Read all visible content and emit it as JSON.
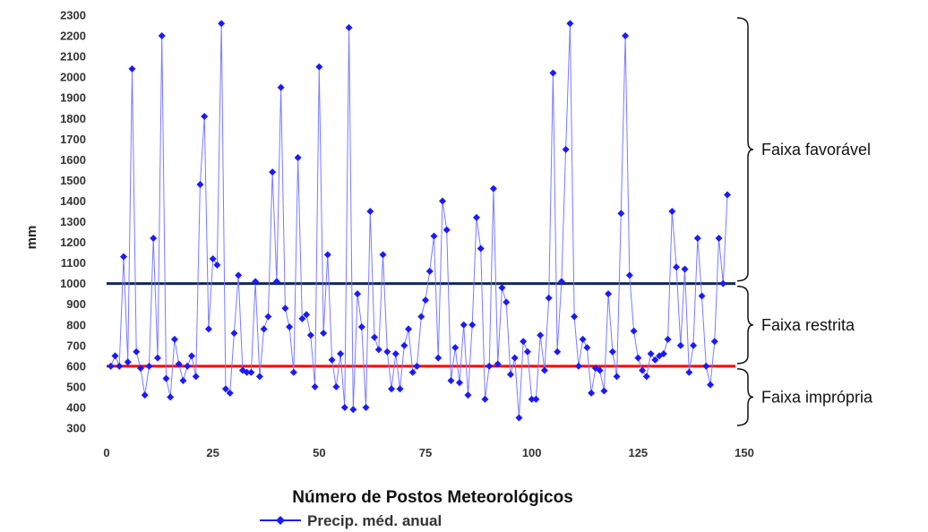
{
  "chart_data": {
    "type": "line",
    "title": "",
    "xlabel": "Número de Postos Meteorológicos",
    "ylabel": "mm",
    "xlim": [
      0,
      150
    ],
    "ylim": [
      300,
      2300
    ],
    "x_ticks": [
      0,
      25,
      50,
      75,
      100,
      125,
      150
    ],
    "y_ticks": [
      300,
      400,
      500,
      600,
      700,
      800,
      900,
      1000,
      1100,
      1200,
      1300,
      1400,
      1500,
      1600,
      1700,
      1800,
      1900,
      2000,
      2100,
      2200,
      2300
    ],
    "grid": false,
    "legend_position": "bottom",
    "series": [
      {
        "name": "Precip. méd. anual",
        "color": "#1a1aff",
        "marker": "diamond",
        "x": [
          1,
          2,
          3,
          4,
          5,
          6,
          7,
          8,
          9,
          10,
          11,
          12,
          13,
          14,
          15,
          16,
          17,
          18,
          19,
          20,
          21,
          22,
          23,
          24,
          25,
          26,
          27,
          28,
          29,
          30,
          31,
          32,
          33,
          34,
          35,
          36,
          37,
          38,
          39,
          40,
          41,
          42,
          43,
          44,
          45,
          46,
          47,
          48,
          49,
          50,
          51,
          52,
          53,
          54,
          55,
          56,
          57,
          58,
          59,
          60,
          61,
          62,
          63,
          64,
          65,
          66,
          67,
          68,
          69,
          70,
          71,
          72,
          73,
          74,
          75,
          76,
          77,
          78,
          79,
          80,
          81,
          82,
          83,
          84,
          85,
          86,
          87,
          88,
          89,
          90,
          91,
          92,
          93,
          94,
          95,
          96,
          97,
          98,
          99,
          100,
          101,
          102,
          103,
          104,
          105,
          106,
          107,
          108,
          109,
          110,
          111,
          112,
          113,
          114,
          115,
          116,
          117,
          118,
          119,
          120,
          121,
          122,
          123,
          124,
          125,
          126,
          127,
          128,
          129,
          130,
          131,
          132,
          133,
          134,
          135,
          136,
          137,
          138,
          139,
          140,
          141,
          142,
          143,
          144,
          145,
          146
        ],
        "y": [
          600,
          650,
          600,
          1130,
          620,
          2040,
          670,
          590,
          460,
          600,
          1220,
          640,
          2200,
          540,
          450,
          730,
          610,
          530,
          600,
          650,
          550,
          1480,
          1810,
          780,
          1120,
          1090,
          2260,
          490,
          470,
          760,
          1040,
          580,
          570,
          570,
          1010,
          550,
          780,
          840,
          1540,
          1010,
          1950,
          880,
          790,
          570,
          1610,
          830,
          850,
          750,
          500,
          2050,
          760,
          1140,
          630,
          500,
          660,
          400,
          2240,
          390,
          950,
          790,
          400,
          1350,
          740,
          680,
          1140,
          670,
          490,
          660,
          490,
          700,
          780,
          570,
          600,
          840,
          920,
          1060,
          1230,
          640,
          1400,
          1260,
          530,
          690,
          520,
          800,
          460,
          800,
          1320,
          1170,
          440,
          600,
          1460,
          610,
          980,
          910,
          560,
          640,
          350,
          720,
          670,
          440,
          440,
          750,
          580,
          930,
          2020,
          670,
          1010,
          1650,
          2260,
          840,
          600,
          730,
          690,
          470,
          590,
          580,
          480,
          950,
          670,
          550,
          1340,
          2200,
          1040,
          770,
          640,
          580,
          550,
          660,
          630,
          650,
          660,
          730,
          1350,
          1080,
          700,
          1070,
          570,
          700,
          1220,
          940,
          600,
          510,
          720,
          1220,
          1000,
          1430
        ]
      }
    ],
    "reference_lines": [
      {
        "y": 1000,
        "color": "#0d2a5c"
      },
      {
        "y": 600,
        "color": "#ff0000"
      }
    ],
    "bands": [
      {
        "label": "Faixa favorável",
        "from": 1000,
        "to": 2300
      },
      {
        "label": "Faixa restrita",
        "from": 600,
        "to": 1000
      },
      {
        "label": "Faixa imprópria",
        "from": 300,
        "to": 600
      }
    ]
  }
}
